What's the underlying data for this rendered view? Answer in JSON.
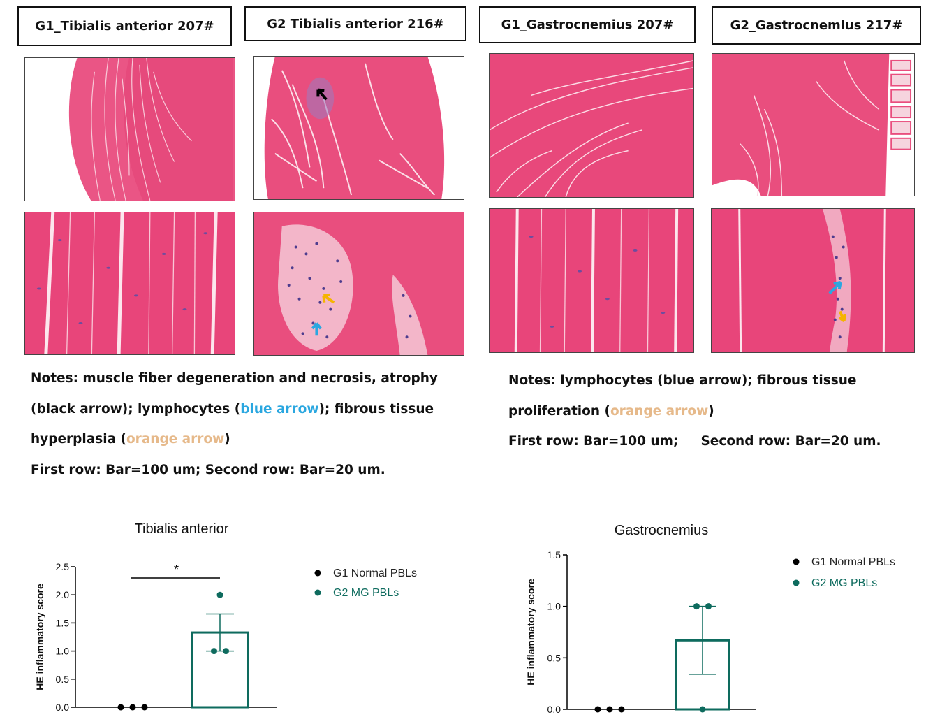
{
  "panels": {
    "ta_g1_title": "G1_Tibialis anterior 207#",
    "ta_g2_title": "G2  Tibialis anterior 216#",
    "gc_g1_title": "G1_Gastrocnemius 207#",
    "gc_g2_title": "G2_Gastrocnemius 217#"
  },
  "notes_left": {
    "line1": "Notes: muscle fiber degeneration and necrosis, atrophy",
    "line2_a": "(black arrow); lymphocytes (",
    "line2_blue": "blue arrow",
    "line2_b": "); fibrous tissue",
    "line3_a": "hyperplasia (",
    "line3_orange": "orange arrow",
    "line3_b": ")",
    "line4": "First row: Bar=100 um; Second row: Bar=20 um."
  },
  "notes_right": {
    "line1": "Notes: lymphocytes (blue arrow); fibrous tissue",
    "line2_a": "proliferation (",
    "line2_orange": "orange arrow",
    "line2_b": ")",
    "line3": "First row: Bar=100 um;     Second row: Bar=20 um."
  },
  "colors": {
    "he_pink": "#e94e7e",
    "blue_note": "#2aa7e0",
    "orange_note": "#e6b98a",
    "g2_teal": "#0e6b5e",
    "g1_black": "#000000"
  },
  "chart_data": [
    {
      "type": "bar",
      "title": "Tibialis anterior",
      "ylabel": "HE inflammatory score",
      "xlabel": "",
      "ylim": [
        0,
        2.5
      ],
      "yticks": [
        "0.0",
        "0.5",
        "1.0",
        "1.5",
        "2.0",
        "2.5"
      ],
      "categories": [
        "G1 Normal PBLs",
        "G2 MG PBLs"
      ],
      "series": [
        {
          "name": "G1 Normal PBLs",
          "mean": 0,
          "sem": 0,
          "points": [
            0,
            0,
            0
          ],
          "color": "#000000"
        },
        {
          "name": "G2 MG PBLs",
          "mean": 1.33,
          "sem": 0.33,
          "points": [
            2,
            1,
            1
          ],
          "color": "#0e6b5e"
        }
      ],
      "significance": "*",
      "legend": "top-right"
    },
    {
      "type": "bar",
      "title": "Gastrocnemius",
      "ylabel": "HE inflammatory score",
      "xlabel": "",
      "ylim": [
        0,
        1.5
      ],
      "yticks": [
        "0.0",
        "0.5",
        "1.0",
        "1.5"
      ],
      "categories": [
        "G1 Normal PBLs",
        "G2 MG PBLs"
      ],
      "series": [
        {
          "name": "G1 Normal PBLs",
          "mean": 0,
          "sem": 0,
          "points": [
            0,
            0,
            0
          ],
          "color": "#000000"
        },
        {
          "name": "G2 MG PBLs",
          "mean": 0.67,
          "sem": 0.33,
          "points": [
            1,
            1,
            0
          ],
          "color": "#0e6b5e"
        }
      ],
      "legend": "top-right"
    }
  ]
}
